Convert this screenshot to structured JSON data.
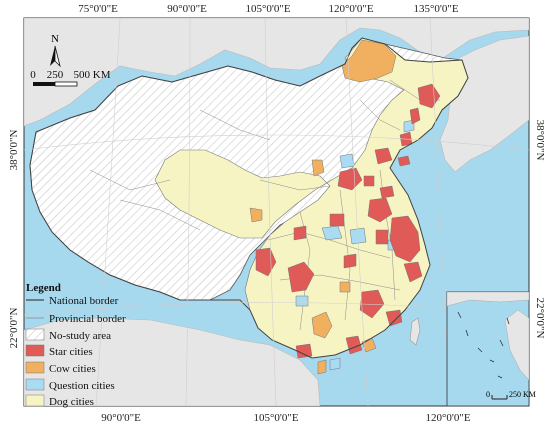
{
  "colors": {
    "sea": "#a6d8ee",
    "land": "#e8e8e8",
    "star": "#e05a57",
    "cow": "#f1b05f",
    "question": "#a9dcf2",
    "dog": "#f7f4c4",
    "border": "#555555"
  },
  "graticule": {
    "top": [
      "75°0'0\"E",
      "90°0'0\"E",
      "105°0'0\"E",
      "120°0'0\"E",
      "135°0'0\"E"
    ],
    "bottom": [
      "90°0'0\"E",
      "105°0'0\"E",
      "120°0'0\"E"
    ],
    "left": [
      "38°0'0\"N",
      "22°0'0\"N"
    ],
    "right": [
      "38°0'0\"N",
      "22°0'0\"N"
    ]
  },
  "north_arrow": {
    "label": "N"
  },
  "scale_bar": {
    "ticks": [
      "0",
      "250",
      "500 KM"
    ]
  },
  "inset_scale": {
    "ticks": [
      "0",
      "250 KM"
    ]
  },
  "legend": {
    "title": "Legend",
    "lines": [
      {
        "label": "National border",
        "icon": "national-border-line"
      },
      {
        "label": "Provincial border",
        "icon": "provincial-border-line"
      },
      {
        "label": "No-study area",
        "icon": "hatch-pattern"
      }
    ],
    "classes": [
      {
        "label": "Star cities",
        "color": "#e05a57"
      },
      {
        "label": "Cow cities",
        "color": "#f1b05f"
      },
      {
        "label": "Question cities",
        "color": "#a9dcf2"
      },
      {
        "label": "Dog cities",
        "color": "#f7f4c4"
      }
    ]
  }
}
